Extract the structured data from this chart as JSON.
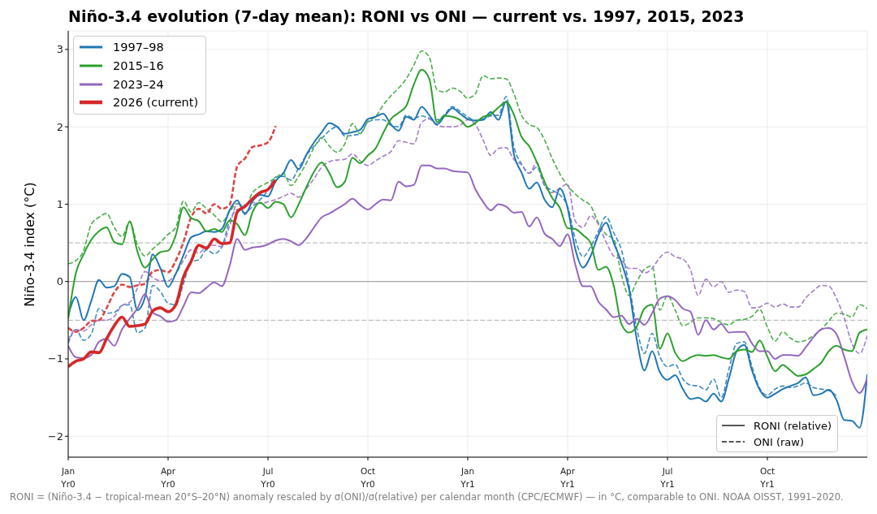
{
  "chart_data": {
    "type": "line",
    "title": "Niño-3.4 evolution (7-day mean): RONI vs ONI — current vs. 1997, 2015, 2023",
    "ylabel": "Niño-3.4 index (°C)",
    "categories": [
      "Jan\nYr0",
      null,
      null,
      null,
      null,
      null,
      null,
      null,
      null,
      null,
      null,
      null,
      null,
      "Apr\nYr0",
      null,
      null,
      null,
      null,
      null,
      null,
      null,
      null,
      null,
      null,
      null,
      null,
      "Jul\nYr0",
      null,
      null,
      null,
      null,
      null,
      null,
      null,
      null,
      null,
      null,
      null,
      null,
      "Oct\nYr0",
      null,
      null,
      null,
      null,
      null,
      null,
      null,
      null,
      null,
      null,
      null,
      null,
      "Jan\nYr1",
      null,
      null,
      null,
      null,
      null,
      null,
      null,
      null,
      null,
      null,
      null,
      null,
      "Apr\nYr1",
      null,
      null,
      null,
      null,
      null,
      null,
      null,
      null,
      null,
      null,
      null,
      null,
      "Jul\nYr1",
      null,
      null,
      null,
      null,
      null,
      null,
      null,
      null,
      null,
      null,
      null,
      null,
      "Oct\nYr1",
      null,
      null,
      null,
      null,
      null,
      null,
      null,
      null,
      null,
      null,
      null,
      null,
      null
    ],
    "ylim": [
      -2.27,
      3.24
    ],
    "yticks": [
      -2,
      -1,
      0,
      1,
      2,
      3
    ],
    "grid": true,
    "legend": "top left",
    "line_style": "solid",
    "ref_lines": [
      {
        "axis": "y",
        "value": 0,
        "color": "#999999",
        "line_style": "solid"
      },
      {
        "axis": "y",
        "value": 0.5,
        "color": "#b0b0b0",
        "line_style": "dashed"
      },
      {
        "axis": "y",
        "value": -0.5,
        "color": "#b0b0b0",
        "line_style": "dashed"
      }
    ],
    "annotations": [
      "RONI (relative)",
      "ONI (raw)",
      "RONI = (Niño-3.4 − tropical-mean 20°S–20°N) anomaly rescaled by σ(ONI)/σ(relative) per calendar month (CPC/ECMWF) — in °C, comparable to ONI. NOAA OISST, 1991–2020."
    ],
    "series": [
      {
        "name": "1997–98",
        "color": "#1f77b4",
        "values": [
          -0.44,
          -0.2,
          -0.5,
          -0.25,
          0.02,
          -0.08,
          -0.06,
          0.1,
          0.06,
          -0.37,
          -0.2,
          0.35,
          0.17,
          -0.07,
          0.1,
          0.34,
          0.57,
          0.61,
          0.65,
          0.64,
          0.68,
          0.92,
          1.05,
          0.87,
          1.04,
          1.12,
          1.1,
          1.3,
          1.4,
          1.57,
          1.45,
          1.64,
          1.8,
          1.93,
          2.05,
          2.0,
          1.91,
          1.93,
          1.96,
          2.1,
          2.13,
          2.17,
          2.03,
          1.95,
          2.13,
          2.09,
          2.26,
          2.15,
          2.03,
          2.14,
          2.24,
          2.17,
          2.1,
          2.08,
          2.09,
          2.19,
          2.09,
          2.33,
          1.65,
          1.41,
          1.2,
          1.28,
          1.06,
          0.96,
          1.2,
          0.95,
          0.42,
          0.18,
          0.33,
          0.6,
          0.76,
          0.5,
          0.25,
          -0.1,
          -0.75,
          -1.15,
          -0.9,
          -1.17,
          -1.27,
          -1.21,
          -1.39,
          -1.52,
          -1.5,
          -1.55,
          -1.45,
          -1.55,
          -1.25,
          -0.9,
          -0.82,
          -1.15,
          -1.4,
          -1.5,
          -1.45,
          -1.39,
          -1.35,
          -1.31,
          -1.24,
          -1.47,
          -1.45,
          -1.4,
          -1.53,
          -1.79,
          -1.8,
          -1.89,
          -1.2
        ]
      },
      {
        "name": "2015–16",
        "color": "#2ca02c",
        "values": [
          -0.48,
          0.11,
          0.35,
          0.54,
          0.65,
          0.7,
          0.51,
          0.48,
          0.78,
          0.39,
          0.18,
          0.29,
          0.38,
          0.4,
          0.6,
          0.96,
          0.82,
          0.78,
          0.65,
          0.68,
          0.64,
          0.79,
          0.74,
          0.6,
          0.9,
          1.02,
          0.95,
          1.03,
          1.0,
          0.83,
          1.0,
          1.22,
          1.42,
          1.54,
          1.4,
          1.22,
          1.29,
          1.6,
          1.53,
          1.63,
          1.72,
          1.92,
          2.1,
          2.18,
          2.27,
          2.55,
          2.74,
          2.62,
          2.06,
          2.14,
          2.13,
          2.09,
          2.0,
          2.05,
          2.13,
          2.16,
          2.25,
          2.32,
          2.16,
          1.87,
          1.75,
          1.54,
          1.29,
          1.08,
          0.95,
          0.69,
          0.68,
          0.6,
          0.5,
          0.15,
          0.19,
          -0.05,
          -0.55,
          -0.66,
          -0.58,
          -0.35,
          -0.3,
          -0.87,
          -0.67,
          -0.92,
          -1.03,
          -0.98,
          -0.95,
          -0.96,
          -0.95,
          -0.98,
          -1.0,
          -0.9,
          -0.88,
          -0.91,
          -0.76,
          -0.97,
          -1.16,
          -1.08,
          -1.15,
          -1.22,
          -1.2,
          -1.13,
          -1.05,
          -0.9,
          -0.83,
          -0.88,
          -0.9,
          -0.66,
          -0.62
        ]
      },
      {
        "name": "2023–24",
        "color": "#9467bd",
        "values": [
          -0.83,
          -0.98,
          -0.99,
          -0.95,
          -0.78,
          -0.74,
          -0.83,
          -0.62,
          -0.48,
          -0.35,
          -0.16,
          -0.4,
          -0.45,
          -0.52,
          -0.5,
          -0.32,
          -0.14,
          -0.15,
          -0.08,
          -0.01,
          -0.06,
          0.2,
          0.55,
          0.41,
          0.44,
          0.45,
          0.48,
          0.53,
          0.55,
          0.52,
          0.47,
          0.56,
          0.7,
          0.83,
          0.88,
          0.94,
          1.0,
          1.07,
          0.99,
          0.93,
          1.0,
          1.06,
          1.05,
          1.29,
          1.23,
          1.25,
          1.5,
          1.5,
          1.46,
          1.46,
          1.43,
          1.42,
          1.41,
          1.19,
          1.03,
          0.92,
          1.0,
          0.97,
          0.89,
          0.9,
          0.71,
          0.83,
          0.62,
          0.55,
          0.46,
          0.61,
          0.22,
          -0.06,
          -0.06,
          -0.26,
          -0.36,
          -0.46,
          -0.44,
          -0.55,
          -0.48,
          -0.56,
          -0.41,
          -0.22,
          -0.19,
          -0.24,
          -0.35,
          -0.39,
          -0.69,
          -0.5,
          -0.62,
          -0.55,
          -0.66,
          -0.65,
          -0.65,
          -0.8,
          -0.9,
          -0.9,
          -1.0,
          -0.95,
          -0.95,
          -0.96,
          -0.85,
          -0.72,
          -0.62,
          -0.6,
          -0.68,
          -0.97,
          -1.29,
          -1.44,
          -1.25
        ]
      },
      {
        "name": "2026 (current)",
        "color": "#d62728",
        "values": [
          -1.1,
          -1.03,
          -1.0,
          -0.91,
          -0.92,
          -0.74,
          -0.57,
          -0.46,
          -0.58,
          -0.57,
          -0.55,
          -0.38,
          -0.34,
          -0.39,
          -0.3,
          0.06,
          0.26,
          0.47,
          0.43,
          0.55,
          0.49,
          0.5,
          0.9,
          0.97,
          1.07,
          1.15,
          1.19,
          1.31,
          null,
          null,
          null,
          null,
          null,
          null,
          null,
          null,
          null,
          null,
          null,
          null,
          null,
          null,
          null,
          null,
          null,
          null,
          null,
          null,
          null,
          null,
          null,
          null,
          null,
          null,
          null,
          null,
          null,
          null,
          null,
          null,
          null,
          null,
          null,
          null,
          null,
          null,
          null,
          null,
          null,
          null,
          null,
          null,
          null,
          null,
          null,
          null,
          null,
          null,
          null,
          null,
          null,
          null,
          null,
          null,
          null,
          null,
          null,
          null,
          null,
          null,
          null,
          null,
          null,
          null,
          null,
          null,
          null,
          null,
          null,
          null,
          null,
          null,
          null,
          null,
          null
        ]
      },
      {
        "color": "#418bbf",
        "line_style": "dashed",
        "values": [
          -0.8,
          -0.62,
          -0.76,
          -0.68,
          -0.35,
          -0.41,
          -0.4,
          -0.31,
          -0.3,
          -0.66,
          -0.6,
          -0.05,
          -0.13,
          -0.28,
          -0.3,
          -0.03,
          0.26,
          0.28,
          0.41,
          0.36,
          0.45,
          0.78,
          0.93,
          0.89,
          0.97,
          1.06,
          1.18,
          1.35,
          1.36,
          1.31,
          1.47,
          1.63,
          1.75,
          1.85,
          1.95,
          2.0,
          1.88,
          1.89,
          1.91,
          2.06,
          2.09,
          2.09,
          2.02,
          2.0,
          2.15,
          2.11,
          2.14,
          2.11,
          2.09,
          2.16,
          2.26,
          2.2,
          2.13,
          2.08,
          2.1,
          2.14,
          2.15,
          2.39,
          1.75,
          1.52,
          1.4,
          1.48,
          1.24,
          1.18,
          1.12,
          0.97,
          0.55,
          0.32,
          0.45,
          0.65,
          0.84,
          0.63,
          0.41,
          -0.05,
          -0.6,
          -0.93,
          -0.67,
          -0.97,
          -1.1,
          -1.07,
          -1.26,
          -1.34,
          -1.35,
          -1.4,
          -1.26,
          -1.5,
          -1.13,
          -0.8,
          -0.78,
          -1.1,
          -1.38,
          -1.47,
          -1.39,
          -1.35,
          -1.37,
          -1.35,
          -1.31,
          -1.37,
          -1.39,
          -1.41,
          -1.48,
          null,
          null,
          null,
          null
        ]
      },
      {
        "color": "#4cae4c",
        "line_style": "dashed",
        "values": [
          0.23,
          0.27,
          0.4,
          0.74,
          0.83,
          0.88,
          0.7,
          0.58,
          0.77,
          0.48,
          0.33,
          0.42,
          0.51,
          0.61,
          0.7,
          1.04,
          0.9,
          1.02,
          0.94,
          0.86,
          0.77,
          0.9,
          1.01,
          0.96,
          1.15,
          1.23,
          1.28,
          1.34,
          1.4,
          1.24,
          1.36,
          1.53,
          1.73,
          1.86,
          1.75,
          1.67,
          1.78,
          2.04,
          1.91,
          2.07,
          2.13,
          2.28,
          2.4,
          2.5,
          2.62,
          2.8,
          2.98,
          2.9,
          2.48,
          2.45,
          2.5,
          2.46,
          2.37,
          2.43,
          2.66,
          2.62,
          2.63,
          2.62,
          2.43,
          2.15,
          2.03,
          1.99,
          1.83,
          1.59,
          1.39,
          1.24,
          1.13,
          1.05,
          0.98,
          0.76,
          0.61,
          0.55,
          0.09,
          -0.18,
          0.0,
          0.16,
          0.2,
          -0.37,
          -0.18,
          -0.37,
          -0.57,
          -0.53,
          -0.47,
          -0.47,
          -0.48,
          -0.53,
          -0.56,
          -0.5,
          -0.49,
          -0.45,
          -0.36,
          -0.59,
          -0.77,
          -0.65,
          -0.73,
          -0.78,
          -0.76,
          -0.7,
          -0.62,
          -0.51,
          -0.41,
          -0.42,
          -0.46,
          -0.3,
          -0.35
        ]
      },
      {
        "color": "#a47ec7",
        "line_style": "dashed",
        "values": [
          -0.76,
          -0.62,
          -0.64,
          -0.56,
          -0.5,
          -0.5,
          -0.45,
          -0.31,
          -0.27,
          -0.09,
          0.13,
          0.05,
          0.01,
          0.01,
          0.1,
          0.27,
          0.41,
          0.37,
          0.45,
          0.47,
          0.45,
          0.72,
          1.0,
          0.99,
          1.02,
          1.01,
          1.03,
          1.06,
          1.1,
          1.14,
          1.09,
          1.2,
          1.33,
          1.48,
          1.55,
          1.57,
          1.58,
          1.65,
          1.56,
          1.5,
          1.56,
          1.62,
          1.68,
          1.82,
          1.8,
          1.78,
          2.06,
          2.1,
          2.02,
          2.0,
          2.0,
          2.02,
          2.09,
          2.03,
          1.83,
          1.63,
          1.72,
          1.73,
          1.58,
          1.51,
          1.4,
          1.54,
          1.24,
          1.15,
          1.21,
          1.26,
          0.78,
          0.7,
          0.85,
          0.74,
          0.51,
          0.33,
          0.28,
          0.17,
          0.17,
          0.11,
          0.17,
          0.31,
          0.38,
          0.32,
          0.29,
          0.15,
          -0.18,
          0.03,
          -0.07,
          0.0,
          -0.14,
          -0.11,
          -0.13,
          -0.34,
          -0.33,
          -0.28,
          -0.33,
          -0.29,
          -0.33,
          -0.33,
          -0.21,
          -0.12,
          -0.05,
          -0.06,
          -0.22,
          -0.47,
          -0.8,
          -0.93,
          -0.7
        ]
      },
      {
        "color": "#dc4748",
        "line_style": "dashed",
        "values": [
          -0.6,
          -0.65,
          -0.6,
          -0.51,
          -0.5,
          -0.34,
          -0.14,
          -0.04,
          -0.07,
          -0.05,
          -0.03,
          0.13,
          0.15,
          0.12,
          0.27,
          0.51,
          0.83,
          0.94,
          0.88,
          1.0,
          0.94,
          0.99,
          1.49,
          1.59,
          1.74,
          1.76,
          1.8,
          2.01,
          null,
          null,
          null,
          null,
          null,
          null,
          null,
          null,
          null,
          null,
          null,
          null,
          null,
          null,
          null,
          null,
          null,
          null,
          null,
          null,
          null,
          null,
          null,
          null,
          null,
          null,
          null,
          null,
          null,
          null,
          null,
          null,
          null,
          null,
          null,
          null,
          null,
          null,
          null,
          null,
          null,
          null,
          null,
          null,
          null,
          null,
          null,
          null,
          null,
          null,
          null,
          null,
          null,
          null,
          null,
          null,
          null,
          null,
          null,
          null,
          null,
          null,
          null,
          null,
          null,
          null,
          null,
          null,
          null,
          null,
          null,
          null,
          null,
          null,
          null,
          null,
          null
        ]
      }
    ]
  }
}
